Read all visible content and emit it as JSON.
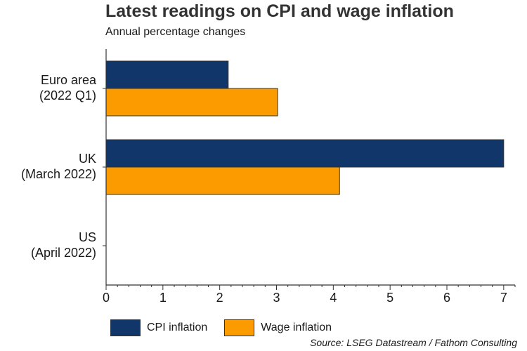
{
  "title": "Latest readings on CPI and wage inflation",
  "subtitle": "Annual percentage changes",
  "source": "Source: LSEG Datastream / Fathom Consulting",
  "colors": {
    "cpi": "#10366a",
    "wage": "#fb9b00",
    "axis": "#333333",
    "text": "#1a1a1a"
  },
  "legend": [
    {
      "label": "CPI inflation",
      "color": "#10366a"
    },
    {
      "label": "Wage inflation",
      "color": "#fb9b00"
    }
  ],
  "chart_data": {
    "type": "bar",
    "orientation": "horizontal",
    "title": "Latest readings on CPI and wage inflation",
    "subtitle": "Annual percentage changes",
    "categories": [
      [
        "Euro area",
        "(2022 Q1)"
      ],
      [
        "UK",
        "(March 2022)"
      ],
      [
        "US",
        "(April 2022)"
      ]
    ],
    "series": [
      {
        "name": "CPI inflation",
        "color": "#10366a",
        "values": [
          2.15,
          7.0,
          null
        ]
      },
      {
        "name": "Wage inflation",
        "color": "#fb9b00",
        "values": [
          3.02,
          4.11,
          null
        ]
      }
    ],
    "xlim": [
      0,
      7.2
    ],
    "xticks": [
      0,
      1,
      2,
      3,
      4,
      5,
      6,
      7
    ],
    "grid": false,
    "legend_position": "bottom"
  }
}
